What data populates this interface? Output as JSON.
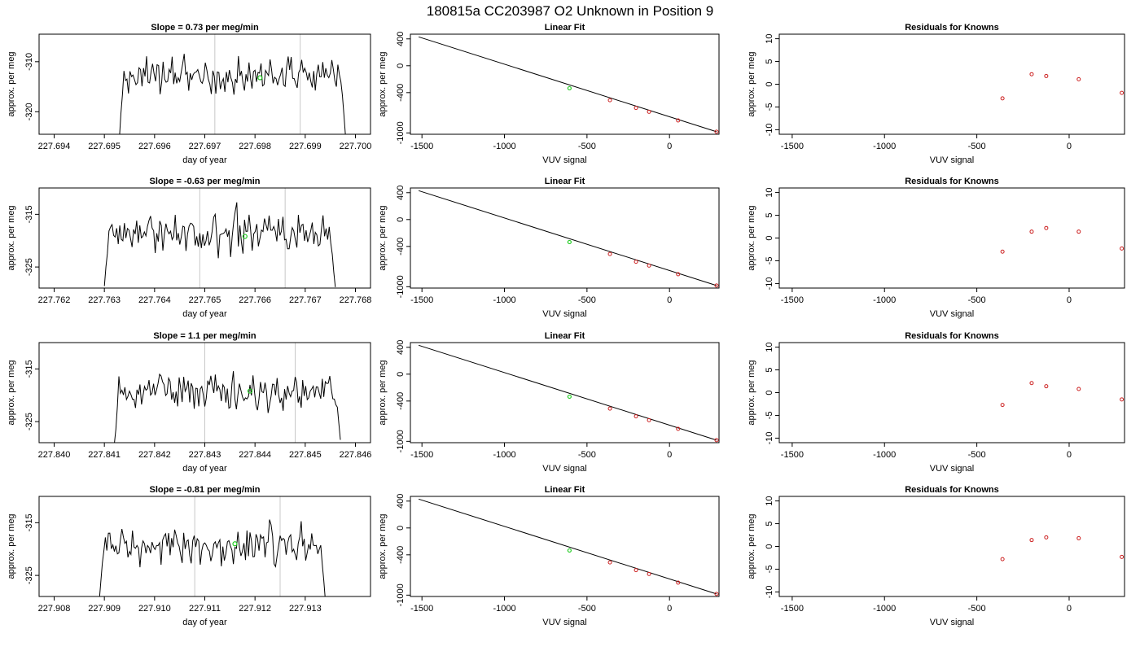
{
  "suptitle": "180815a     CC203987   O2 Unknown in Position  9",
  "colors": {
    "trace": "#000000",
    "vline": "#c8c8c8",
    "fitline": "#000000",
    "known": "#cc2020",
    "unknown": "#22cc22"
  },
  "chart_data": [
    {
      "type": "line",
      "panel": "time-series",
      "row": 1,
      "title": "Slope =  0.73  per meg/min",
      "xlabel": "day of year",
      "ylabel": "approx. per meg",
      "xlim": [
        227.6937,
        227.7003
      ],
      "ylim": [
        -324.5,
        -304.5
      ],
      "xticks": [
        "227.694",
        "227.695",
        "227.696",
        "227.697",
        "227.698",
        "227.699",
        "227.700"
      ],
      "yticks": [
        "-310",
        "-320"
      ],
      "vlines": [
        227.6972,
        227.6989
      ],
      "unknown_point": {
        "x": 227.6981,
        "y": -313.2
      },
      "trace_start": 227.6953,
      "trace_end": 227.6998,
      "trace_mean": -313,
      "trace_amp": 2.6,
      "trace_head": -324.5,
      "trace_tail": -324.5
    },
    {
      "type": "scatter",
      "panel": "linear-fit",
      "row": 1,
      "title": "Linear Fit",
      "xlabel": "VUV signal",
      "ylabel": "approx. per meg",
      "xlim": [
        -1570,
        300
      ],
      "ylim": [
        -1020,
        470
      ],
      "xticks": [
        "-1500",
        "-1000",
        "-500",
        "0"
      ],
      "yticks": [
        "400",
        "0",
        "-400",
        "-1000"
      ],
      "fit": {
        "slope": 0.73,
        "intercept": -775
      },
      "knowns": [
        {
          "x": 285,
          "y": -982
        },
        {
          "x": 52,
          "y": -814
        },
        {
          "x": -124,
          "y": -685
        },
        {
          "x": -203,
          "y": -628
        },
        {
          "x": -361,
          "y": -513
        }
      ],
      "unknown": {
        "x": -606,
        "y": -335
      }
    },
    {
      "type": "scatter",
      "panel": "residuals",
      "row": 1,
      "title": "Residuals for Knowns",
      "xlabel": "VUV signal",
      "ylabel": "approx. per meg",
      "xlim": [
        -1570,
        300
      ],
      "ylim": [
        -11,
        11
      ],
      "xticks": [
        "-1500",
        "-1000",
        "-500",
        "0"
      ],
      "yticks": [
        "10",
        "5",
        "0",
        "-5",
        "-10"
      ],
      "points": [
        {
          "x": -361,
          "y": -3.1
        },
        {
          "x": -203,
          "y": 2.2
        },
        {
          "x": -124,
          "y": 1.8
        },
        {
          "x": 52,
          "y": 1.1
        },
        {
          "x": 285,
          "y": -1.9
        }
      ]
    },
    {
      "type": "line",
      "panel": "time-series",
      "row": 2,
      "title": "Slope =  -0.63  per meg/min",
      "xlabel": "day of year",
      "ylabel": "approx. per meg",
      "xlim": [
        227.7617,
        227.7683
      ],
      "ylim": [
        -329,
        -310
      ],
      "xticks": [
        "227.762",
        "227.763",
        "227.764",
        "227.765",
        "227.766",
        "227.767",
        "227.768"
      ],
      "yticks": [
        "-315",
        "-325"
      ],
      "vlines": [
        227.7649,
        227.7666
      ],
      "unknown_point": {
        "x": 227.7658,
        "y": -319.2
      },
      "trace_start": 227.763,
      "trace_end": 227.7676,
      "trace_mean": -318.6,
      "trace_amp": 2.8,
      "trace_head": -329,
      "trace_tail": -329
    },
    {
      "type": "scatter",
      "panel": "linear-fit",
      "row": 2,
      "title": "Linear Fit",
      "xlabel": "VUV signal",
      "ylabel": "approx. per meg",
      "xlim": [
        -1570,
        300
      ],
      "ylim": [
        -1020,
        470
      ],
      "xticks": [
        "-1500",
        "-1000",
        "-500",
        "0"
      ],
      "yticks": [
        "400",
        "0",
        "-400",
        "-1000"
      ],
      "fit": {
        "slope": 0.73,
        "intercept": -775
      },
      "knowns": [
        {
          "x": 285,
          "y": -982
        },
        {
          "x": 52,
          "y": -814
        },
        {
          "x": -124,
          "y": -685
        },
        {
          "x": -203,
          "y": -628
        },
        {
          "x": -361,
          "y": -513
        }
      ],
      "unknown": {
        "x": -606,
        "y": -335
      }
    },
    {
      "type": "scatter",
      "panel": "residuals",
      "row": 2,
      "title": "Residuals for Knowns",
      "xlabel": "VUV signal",
      "ylabel": "approx. per meg",
      "xlim": [
        -1570,
        300
      ],
      "ylim": [
        -11,
        11
      ],
      "xticks": [
        "-1500",
        "-1000",
        "-500",
        "0"
      ],
      "yticks": [
        "10",
        "5",
        "0",
        "-5",
        "-10"
      ],
      "points": [
        {
          "x": -361,
          "y": -3.0
        },
        {
          "x": -203,
          "y": 1.4
        },
        {
          "x": -124,
          "y": 2.2
        },
        {
          "x": 52,
          "y": 1.4
        },
        {
          "x": 285,
          "y": -2.3
        }
      ]
    },
    {
      "type": "line",
      "panel": "time-series",
      "row": 3,
      "title": "Slope =  1.1  per meg/min",
      "xlabel": "day of year",
      "ylabel": "approx. per meg",
      "xlim": [
        227.8397,
        227.8463
      ],
      "ylim": [
        -329,
        -310
      ],
      "xticks": [
        "227.840",
        "227.841",
        "227.842",
        "227.843",
        "227.844",
        "227.845",
        "227.846"
      ],
      "yticks": [
        "-315",
        "-325"
      ],
      "vlines": [
        227.843,
        227.8448
      ],
      "unknown_point": {
        "x": 227.8439,
        "y": -319.2
      },
      "trace_start": 227.8412,
      "trace_end": 227.8457,
      "trace_mean": -319.3,
      "trace_amp": 2.6,
      "trace_head": -329,
      "trace_tail": -329
    },
    {
      "type": "scatter",
      "panel": "linear-fit",
      "row": 3,
      "title": "Linear Fit",
      "xlabel": "VUV signal",
      "ylabel": "approx. per meg",
      "xlim": [
        -1570,
        300
      ],
      "ylim": [
        -1020,
        470
      ],
      "xticks": [
        "-1500",
        "-1000",
        "-500",
        "0"
      ],
      "yticks": [
        "400",
        "0",
        "-400",
        "-1000"
      ],
      "fit": {
        "slope": 0.73,
        "intercept": -775
      },
      "knowns": [
        {
          "x": 285,
          "y": -982
        },
        {
          "x": 52,
          "y": -814
        },
        {
          "x": -124,
          "y": -685
        },
        {
          "x": -203,
          "y": -628
        },
        {
          "x": -361,
          "y": -513
        }
      ],
      "unknown": {
        "x": -606,
        "y": -335
      }
    },
    {
      "type": "scatter",
      "panel": "residuals",
      "row": 3,
      "title": "Residuals for Knowns",
      "xlabel": "VUV signal",
      "ylabel": "approx. per meg",
      "xlim": [
        -1570,
        300
      ],
      "ylim": [
        -11,
        11
      ],
      "xticks": [
        "-1500",
        "-1000",
        "-500",
        "0"
      ],
      "yticks": [
        "10",
        "5",
        "0",
        "-5",
        "-10"
      ],
      "points": [
        {
          "x": -361,
          "y": -2.7
        },
        {
          "x": -203,
          "y": 2.1
        },
        {
          "x": -124,
          "y": 1.4
        },
        {
          "x": 52,
          "y": 0.8
        },
        {
          "x": 285,
          "y": -1.5
        }
      ]
    },
    {
      "type": "line",
      "panel": "time-series",
      "row": 4,
      "title": "Slope =  -0.81  per meg/min",
      "xlabel": "day of year",
      "ylabel": "approx. per meg",
      "xlim": [
        227.9077,
        227.9143
      ],
      "ylim": [
        -329,
        -310
      ],
      "xticks": [
        "227.908",
        "227.909",
        "227.910",
        "227.911",
        "227.912",
        "227.913"
      ],
      "yticks": [
        "-315",
        "-325"
      ],
      "vlines": [
        227.9108,
        227.9125
      ],
      "unknown_point": {
        "x": 227.9116,
        "y": -319.0
      },
      "trace_start": 227.9089,
      "trace_end": 227.9134,
      "trace_mean": -319.3,
      "trace_amp": 2.6,
      "trace_head": -329,
      "trace_tail": -329
    },
    {
      "type": "scatter",
      "panel": "linear-fit",
      "row": 4,
      "title": "Linear Fit",
      "xlabel": "VUV signal",
      "ylabel": "approx. per meg",
      "xlim": [
        -1570,
        300
      ],
      "ylim": [
        -1020,
        470
      ],
      "xticks": [
        "-1500",
        "-1000",
        "-500",
        "0"
      ],
      "yticks": [
        "400",
        "0",
        "-400",
        "-1000"
      ],
      "fit": {
        "slope": 0.73,
        "intercept": -775
      },
      "knowns": [
        {
          "x": 285,
          "y": -982
        },
        {
          "x": 52,
          "y": -814
        },
        {
          "x": -124,
          "y": -685
        },
        {
          "x": -203,
          "y": -628
        },
        {
          "x": -361,
          "y": -513
        }
      ],
      "unknown": {
        "x": -606,
        "y": -335
      }
    },
    {
      "type": "scatter",
      "panel": "residuals",
      "row": 4,
      "title": "Residuals for Knowns",
      "xlabel": "VUV signal",
      "ylabel": "approx. per meg",
      "xlim": [
        -1570,
        300
      ],
      "ylim": [
        -11,
        11
      ],
      "xticks": [
        "-1500",
        "-1000",
        "-500",
        "0"
      ],
      "yticks": [
        "10",
        "5",
        "0",
        "-5",
        "-10"
      ],
      "points": [
        {
          "x": -361,
          "y": -2.8
        },
        {
          "x": -203,
          "y": 1.4
        },
        {
          "x": -124,
          "y": 2.0
        },
        {
          "x": 52,
          "y": 1.8
        },
        {
          "x": 285,
          "y": -2.3
        }
      ]
    }
  ]
}
